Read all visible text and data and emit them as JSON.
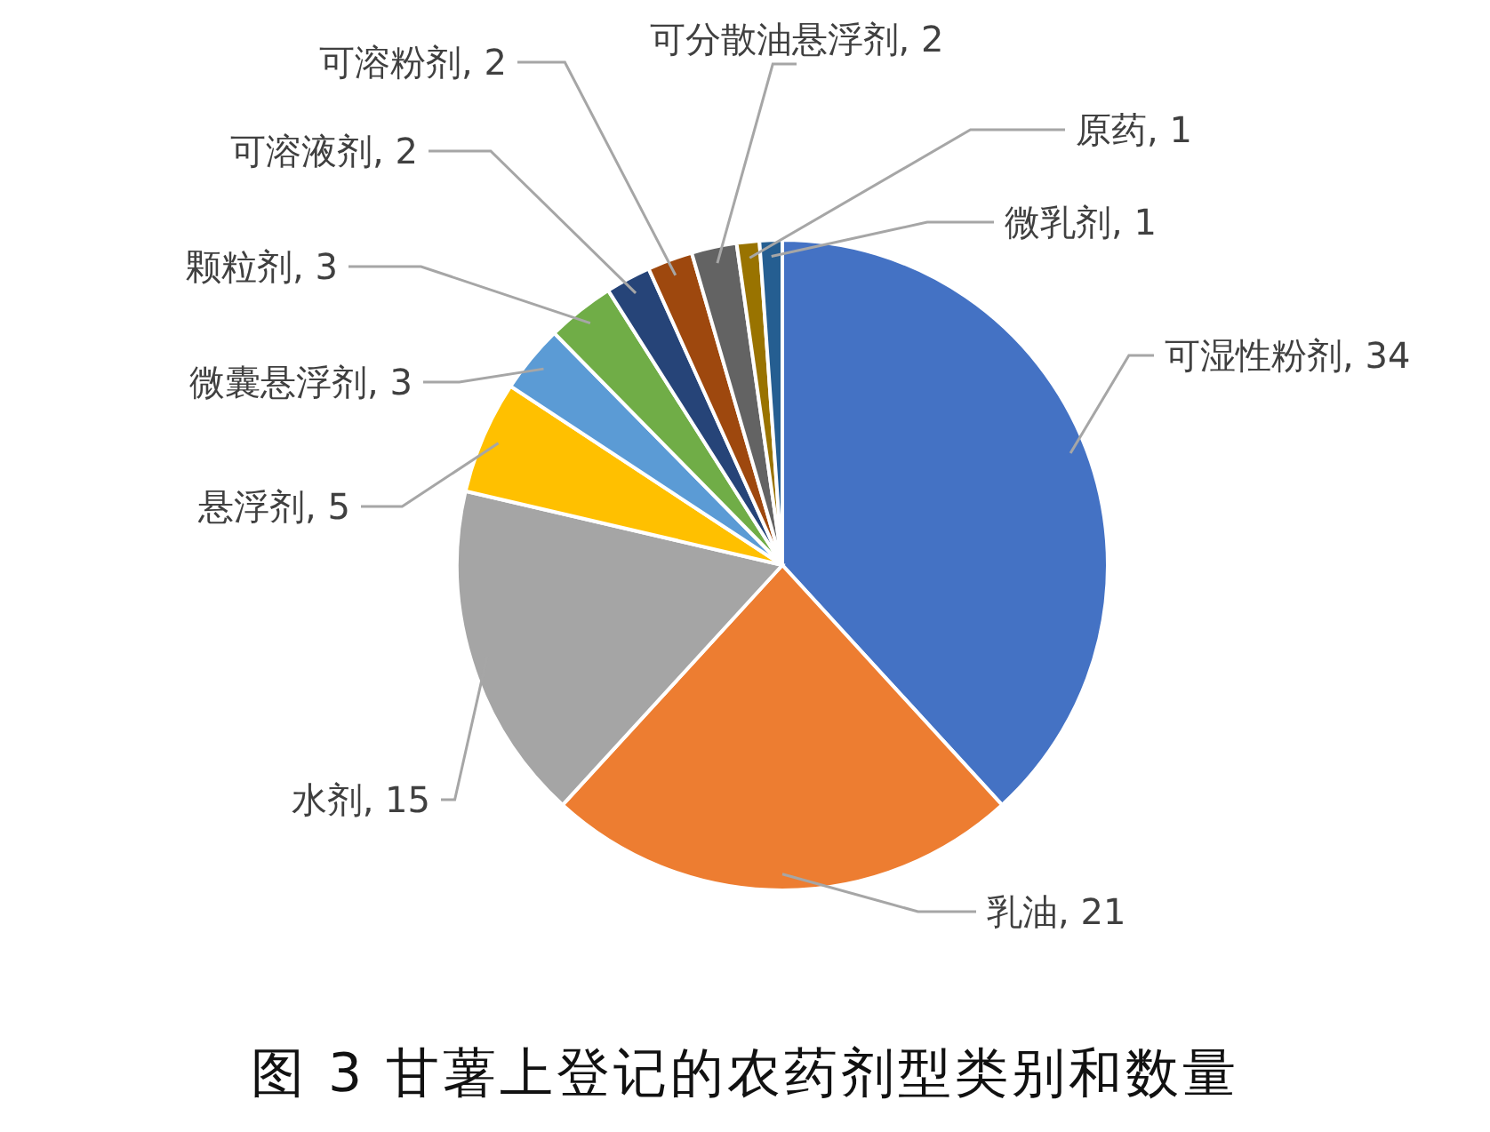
{
  "chart_data": {
    "type": "pie",
    "title": "图 3 甘薯上登记的农药剂型类别和数量",
    "categories": [
      "可湿性粉剂",
      "乳油",
      "水剂",
      "悬浮剂",
      "微囊悬浮剂",
      "颗粒剂",
      "可溶液剂",
      "可溶粉剂",
      "可分散油悬浮剂",
      "原药",
      "微乳剂"
    ],
    "values": [
      34,
      21,
      15,
      5,
      3,
      3,
      2,
      2,
      2,
      1,
      1
    ],
    "colors": [
      "#4472c4",
      "#ed7d31",
      "#a5a5a5",
      "#ffc000",
      "#5b9bd5",
      "#70ad47",
      "#264478",
      "#9e480e",
      "#636363",
      "#997300",
      "#255e91"
    ],
    "value_labels": [
      ", 34",
      ", 21",
      ", 15",
      ", 5",
      ", 3",
      ", 3",
      ", 2",
      ", 2",
      ", 2",
      ", 1",
      ", 1"
    ]
  }
}
